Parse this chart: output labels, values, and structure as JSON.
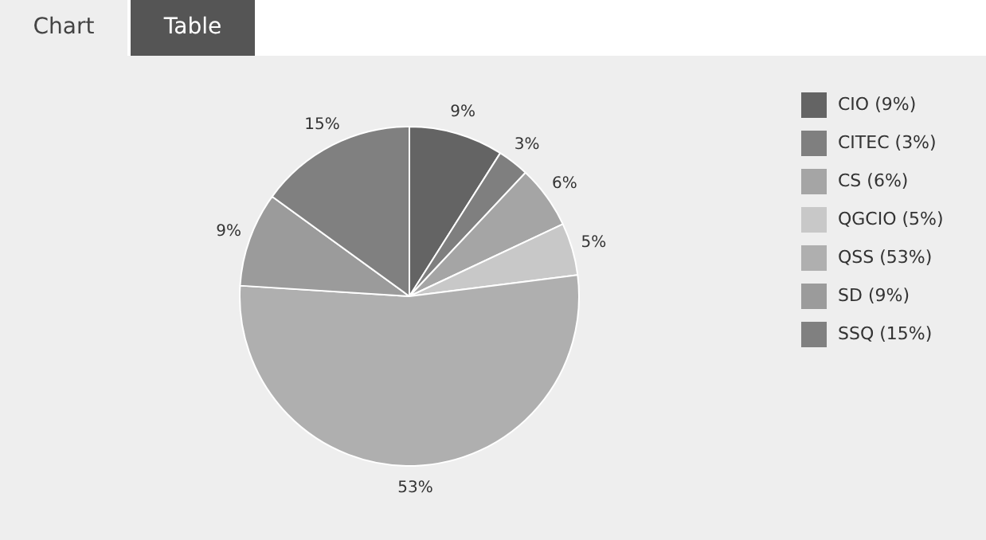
{
  "chart_data": {
    "type": "pie",
    "categories": [
      "CIO (9%)",
      "CITEC (3%)",
      "CS (6%)",
      "QGCIO (5%)",
      "QSS (53%)",
      "SD (9%)",
      "SSQ (15%)"
    ],
    "values": [
      9,
      3,
      6,
      5,
      53,
      9,
      15
    ],
    "value_labels": [
      "9%",
      "3%",
      "6%",
      "5%",
      "53%",
      "9%",
      "15%"
    ],
    "colors": [
      "#646464",
      "#7f7f7f",
      "#a5a5a5",
      "#c8c8c8",
      "#afafaf",
      "#9b9b9b",
      "#808080"
    ],
    "legend": "top right",
    "annotations": [
      "Chart",
      "Table"
    ]
  }
}
